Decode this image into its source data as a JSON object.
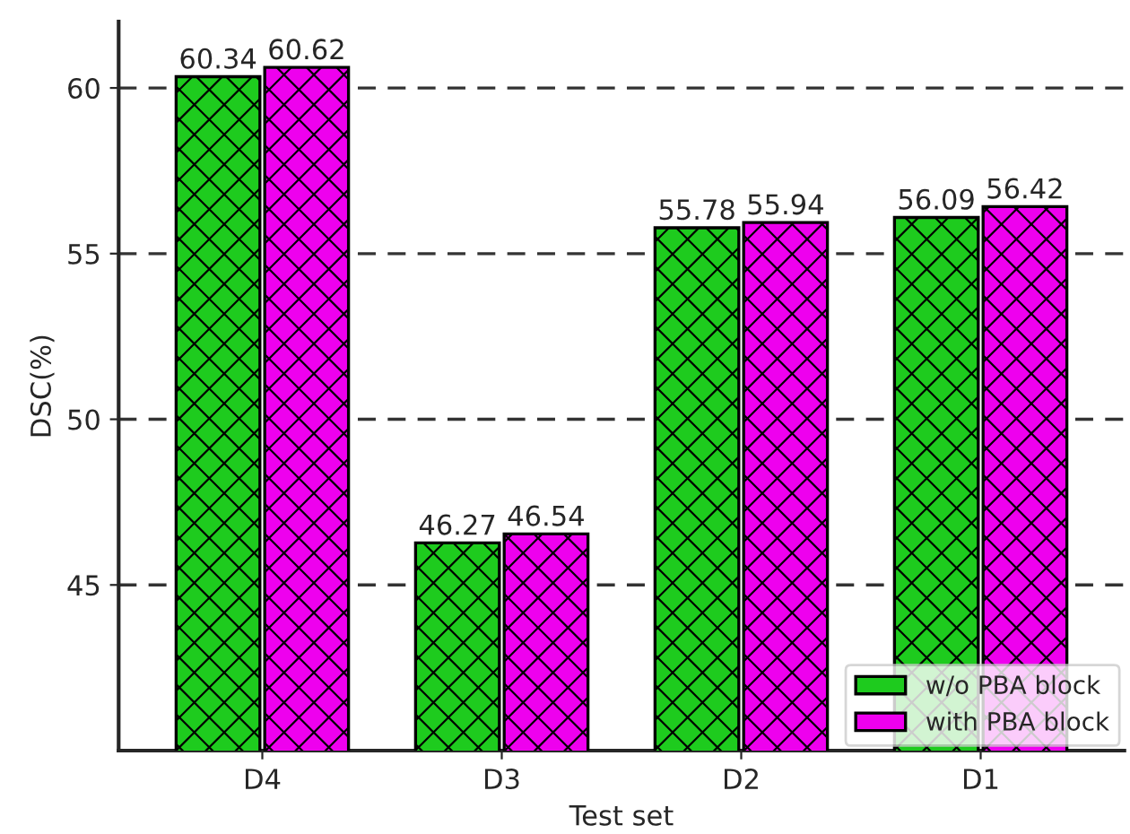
{
  "chart_data": {
    "type": "bar",
    "xlabel": "Test set",
    "ylabel": "DSC(%)",
    "categories": [
      "D4",
      "D3",
      "D2",
      "D1"
    ],
    "series": [
      {
        "name": "w/o PBA block",
        "color": "#1ecb1e",
        "values": [
          60.34,
          46.27,
          55.78,
          56.09
        ]
      },
      {
        "name": "with PBA block",
        "color": "#ee00ee",
        "values": [
          60.62,
          46.54,
          55.94,
          56.42
        ]
      }
    ],
    "ylim": [
      40,
      62
    ],
    "yticks": [
      45,
      50,
      55,
      60
    ],
    "grid": "y",
    "legend": "bottom right",
    "data_labels": true
  }
}
